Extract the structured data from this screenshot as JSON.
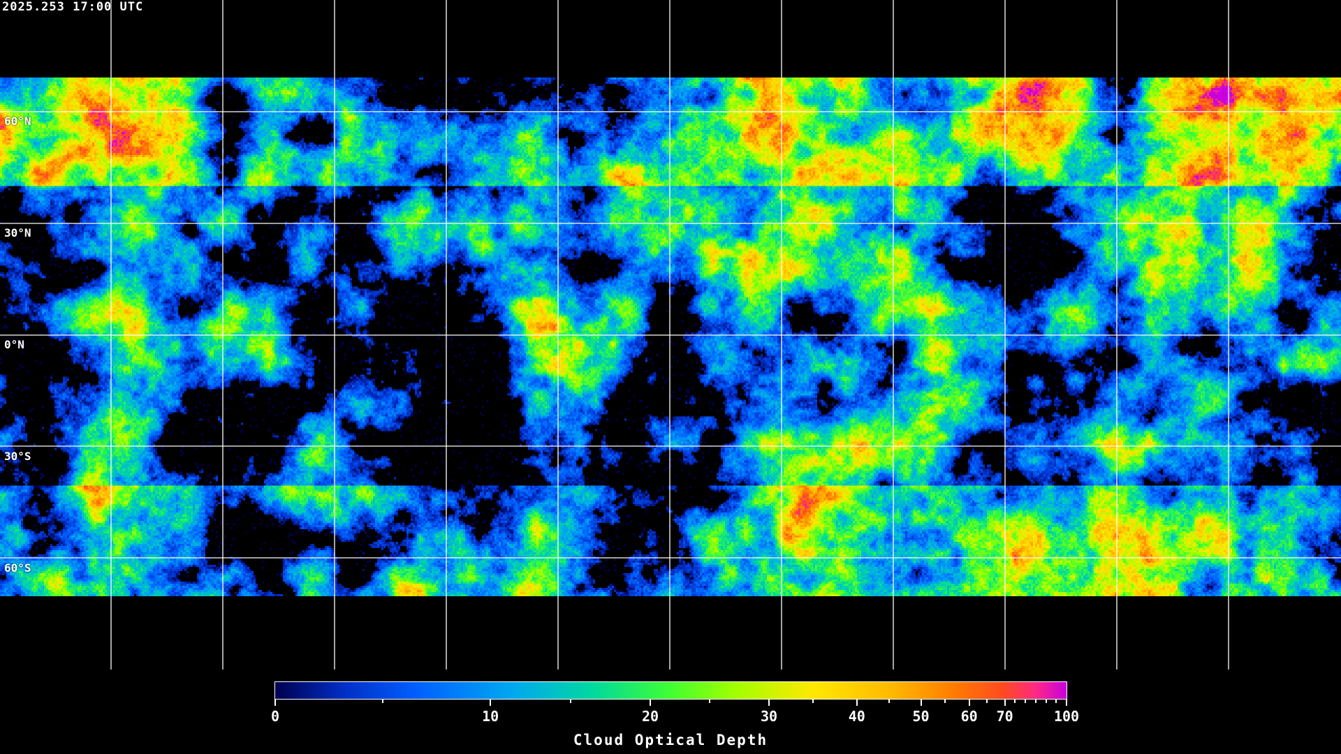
{
  "timestamp": "2025.253 17:00 UTC",
  "map": {
    "projection": "equirectangular",
    "gridlines": {
      "longitude_step_deg": 30,
      "latitude_step_deg": 30,
      "color": "#ffffff"
    },
    "lat_labels": [
      "60°N",
      "30°N",
      "0°N",
      "30°S",
      "60°S"
    ],
    "coastlines_color": "#ffffff",
    "background": "#000000"
  },
  "colorbar": {
    "title": "Cloud Optical Depth",
    "range": [
      0,
      100
    ],
    "major_ticks": [
      {
        "value": 0,
        "label": "0"
      },
      {
        "value": 10,
        "label": "10"
      },
      {
        "value": 20,
        "label": "20"
      },
      {
        "value": 30,
        "label": "30"
      },
      {
        "value": 40,
        "label": "40"
      },
      {
        "value": 50,
        "label": "50"
      },
      {
        "value": 60,
        "label": "60"
      },
      {
        "value": 70,
        "label": "70"
      },
      {
        "value": 100,
        "label": "100"
      }
    ],
    "minor_ticks": [
      5,
      15,
      25,
      35,
      45,
      55,
      65,
      75,
      80,
      85,
      90,
      95
    ],
    "colors": [
      "#000050",
      "#0060ff",
      "#00a8f0",
      "#00d8a0",
      "#40ff30",
      "#a0ff00",
      "#ffe800",
      "#ffb800",
      "#ff7a00",
      "#ff4a20",
      "#ff2a80",
      "#c800e0"
    ]
  }
}
